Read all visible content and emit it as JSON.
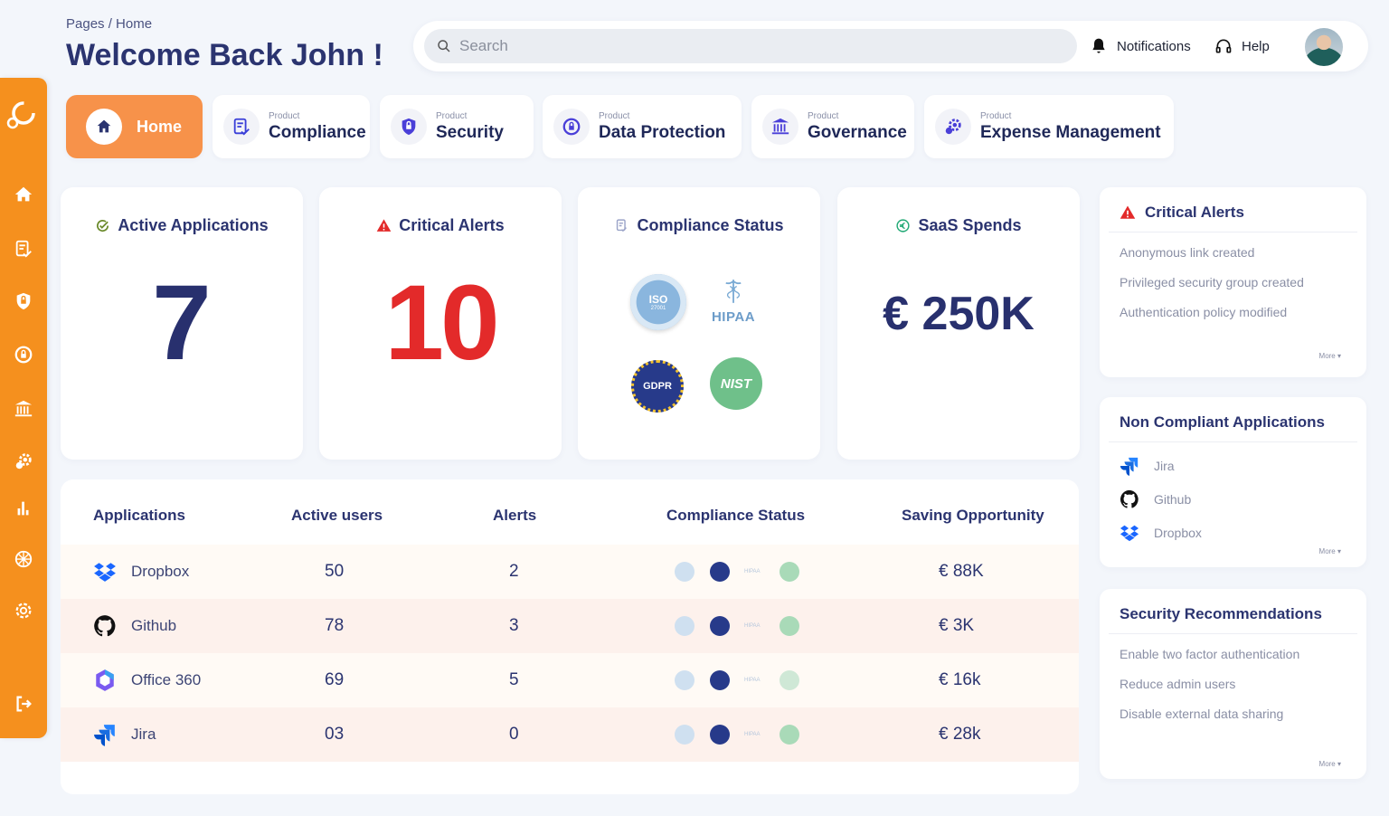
{
  "header": {
    "breadcrumb": "Pages / Home",
    "title": "Welcome Back John !",
    "search_placeholder": "Search",
    "notifications_label": "Notifications",
    "help_label": "Help"
  },
  "tabs": [
    {
      "small": "",
      "label": "Home",
      "icon": "home-icon"
    },
    {
      "small": "Product",
      "label": "Compliance",
      "icon": "checklist-icon"
    },
    {
      "small": "Product",
      "label": "Security",
      "icon": "shield-lock-icon"
    },
    {
      "small": "Product",
      "label": "Data Protection",
      "icon": "lock-cycle-icon"
    },
    {
      "small": "Product",
      "label": "Governance",
      "icon": "bank-icon"
    },
    {
      "small": "Product",
      "label": "Expense Management",
      "icon": "gear-coins-icon"
    }
  ],
  "stats": {
    "active_apps": {
      "title": "Active Applications",
      "value": "7"
    },
    "critical_alerts": {
      "title": "Critical Alerts",
      "value": "10"
    },
    "compliance": {
      "title": "Compliance Status",
      "iso": "ISO",
      "iso_num": "27001",
      "hipaa": "HIPAA",
      "gdpr": "GDPR",
      "nist": "NIST"
    },
    "saas": {
      "title": "SaaS Spends",
      "value": "€ 250K"
    }
  },
  "table": {
    "headers": [
      "Applications",
      "Active users",
      "Alerts",
      "Compliance Status",
      "Saving Opportunity"
    ],
    "rows": [
      {
        "app": "Dropbox",
        "users": "50",
        "alerts": "2",
        "saving": "€ 88K"
      },
      {
        "app": "Github",
        "users": "78",
        "alerts": "3",
        "saving": "€ 3K"
      },
      {
        "app": "Office 360",
        "users": "69",
        "alerts": "5",
        "saving": "€ 16k"
      },
      {
        "app": "Jira",
        "users": "03",
        "alerts": "0",
        "saving": "€ 28k"
      }
    ],
    "mini_hipaa": "HIPAA"
  },
  "panels": {
    "critical_alerts": {
      "title": "Critical Alerts",
      "items": [
        "Anonymous link created",
        "Privileged security group created",
        "Authentication policy modified"
      ],
      "more": "More ▾"
    },
    "non_compliant": {
      "title": "Non Compliant Applications",
      "items": [
        "Jira",
        "Github",
        "Dropbox"
      ],
      "more": "More ▾"
    },
    "security_recs": {
      "title": "Security Recommendations",
      "items": [
        "Enable two factor authentication",
        "Reduce admin users",
        "Disable external data sharing"
      ],
      "more": "More ▾"
    }
  },
  "colors": {
    "accent": "#f5901e",
    "navy": "#2b3470",
    "alert_red": "#e32a2a"
  }
}
